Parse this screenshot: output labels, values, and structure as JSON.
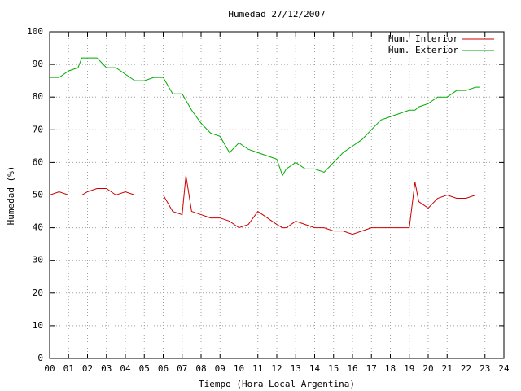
{
  "chart_data": {
    "type": "line",
    "title": "Humedad 27/12/2007",
    "xlabel": "Tiempo (Hora Local Argentina)",
    "ylabel": "Humedad (%)",
    "x": [
      0,
      0.5,
      1,
      1.5,
      1.7,
      2,
      2.5,
      3,
      3.5,
      4,
      4.5,
      5,
      5.5,
      6,
      6.5,
      7,
      7.2,
      7.5,
      8,
      8.5,
      9,
      9.5,
      10,
      10.5,
      11,
      11.5,
      12,
      12.3,
      12.5,
      13,
      13.5,
      14,
      14.5,
      15,
      15.5,
      16,
      16.5,
      17,
      17.5,
      18,
      18.5,
      19,
      19.3,
      19.5,
      20,
      20.5,
      21,
      21.5,
      22,
      22.5,
      22.75
    ],
    "series": [
      {
        "name": "Hum. Interior",
        "color": "#cc0000",
        "values": [
          50,
          51,
          50,
          50,
          50,
          51,
          52,
          52,
          50,
          51,
          50,
          50,
          50,
          50,
          45,
          44,
          56,
          45,
          44,
          43,
          43,
          42,
          40,
          41,
          45,
          43,
          41,
          40,
          40,
          42,
          41,
          40,
          40,
          39,
          39,
          38,
          39,
          40,
          40,
          40,
          40,
          40,
          54,
          48,
          46,
          49,
          50,
          49,
          49,
          50,
          50
        ]
      },
      {
        "name": "Hum. Exterior",
        "color": "#00aa00",
        "values": [
          86,
          86,
          88,
          89,
          92,
          92,
          92,
          89,
          89,
          87,
          85,
          85,
          86,
          86,
          81,
          81,
          79,
          76,
          72,
          69,
          68,
          63,
          66,
          64,
          63,
          62,
          61,
          56,
          58,
          60,
          58,
          58,
          57,
          60,
          63,
          65,
          67,
          70,
          73,
          74,
          75,
          76,
          76,
          77,
          78,
          80,
          80,
          82,
          82,
          83,
          83
        ]
      }
    ],
    "xlim": [
      0,
      24
    ],
    "xticks": [
      {
        "value": 0,
        "label": "00"
      },
      {
        "value": 1,
        "label": "01"
      },
      {
        "value": 2,
        "label": "02"
      },
      {
        "value": 3,
        "label": "03"
      },
      {
        "value": 4,
        "label": "04"
      },
      {
        "value": 5,
        "label": "05"
      },
      {
        "value": 6,
        "label": "06"
      },
      {
        "value": 7,
        "label": "07"
      },
      {
        "value": 8,
        "label": "08"
      },
      {
        "value": 9,
        "label": "09"
      },
      {
        "value": 10,
        "label": "10"
      },
      {
        "value": 11,
        "label": "11"
      },
      {
        "value": 12,
        "label": "12"
      },
      {
        "value": 13,
        "label": "13"
      },
      {
        "value": 14,
        "label": "14"
      },
      {
        "value": 15,
        "label": "15"
      },
      {
        "value": 16,
        "label": "16"
      },
      {
        "value": 17,
        "label": "17"
      },
      {
        "value": 18,
        "label": "18"
      },
      {
        "value": 19,
        "label": "19"
      },
      {
        "value": 20,
        "label": "20"
      },
      {
        "value": 21,
        "label": "21"
      },
      {
        "value": 22,
        "label": "22"
      },
      {
        "value": 23,
        "label": "23"
      },
      {
        "value": 24,
        "label": "24"
      }
    ],
    "ylim": [
      0,
      100
    ],
    "yticks": [
      0,
      10,
      20,
      30,
      40,
      50,
      60,
      70,
      80,
      90,
      100
    ],
    "grid": true,
    "legend": "upper right"
  }
}
